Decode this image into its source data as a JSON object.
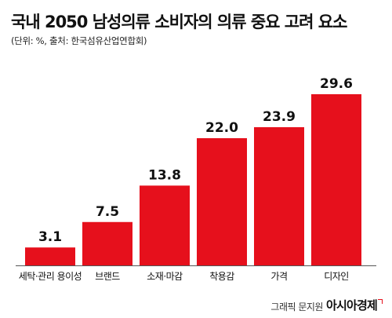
{
  "colors": {
    "bar": "#e6101c",
    "baseline": "#555555",
    "text": "#111111"
  },
  "credit": {
    "prefix": "그래픽 문지원",
    "brand": "아시아경제"
  },
  "chart_data": {
    "type": "bar",
    "title": "국내 2050 남성의류 소비자의 의류 중요 고려 요소",
    "subtitle": "(단위: %, 출처: 한국섬유산업연합회)",
    "xlabel": "",
    "ylabel": "",
    "categories": [
      "세탁·관리 용이성",
      "브랜드",
      "소재·마감",
      "착용감",
      "가격",
      "디자인"
    ],
    "values": [
      3.1,
      7.5,
      13.8,
      22.0,
      23.9,
      29.6
    ],
    "value_labels": [
      "3.1",
      "7.5",
      "13.8",
      "22.0",
      "23.9",
      "29.6"
    ],
    "ylim": [
      0,
      30
    ],
    "grid": false,
    "legend": "none"
  }
}
